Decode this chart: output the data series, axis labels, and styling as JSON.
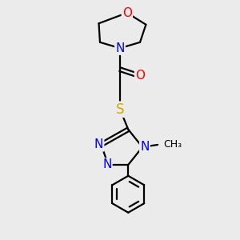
{
  "bg_color": "#ebebeb",
  "atom_colors": {
    "C": "#000000",
    "N": "#0000ff",
    "O": "#ff0000",
    "S": "#ccaa00",
    "H": "#000000"
  },
  "bond_color": "#000000",
  "bond_width": 1.6,
  "font_size": 10,
  "figsize": [
    3.0,
    3.0
  ],
  "dpi": 100
}
